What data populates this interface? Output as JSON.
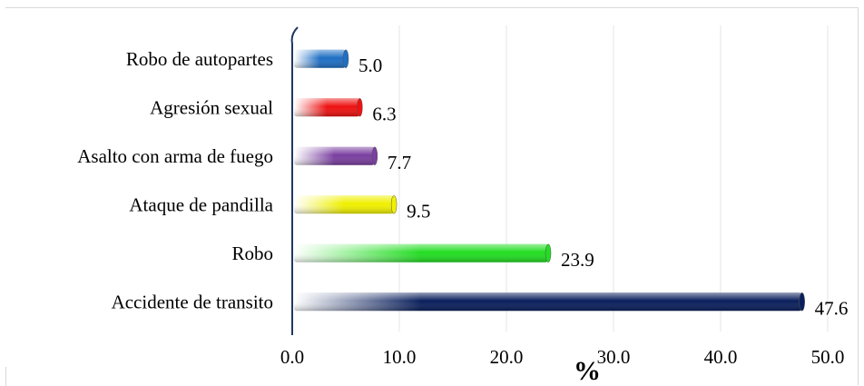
{
  "chart_data": {
    "type": "bar",
    "orientation": "horizontal",
    "categories": [
      "Robo de autopartes",
      "Agresión sexual",
      "Asalto con arma de fuego",
      "Ataque de pandilla",
      "Robo",
      "Accidente de transito"
    ],
    "values": [
      5.0,
      6.3,
      7.7,
      9.5,
      23.9,
      47.6
    ],
    "value_labels": [
      "5.0",
      "6.3",
      "7.7",
      "9.5",
      "23.9",
      "47.6"
    ],
    "colors": [
      "#1f6fc4",
      "#ee1111",
      "#7a3fa0",
      "#f0f000",
      "#22dd22",
      "#0a1f5c"
    ],
    "xlabel": "%",
    "xlim": [
      0,
      50
    ],
    "xticks": [
      "0.0",
      "10.0",
      "20.0",
      "30.0",
      "40.0",
      "50.0"
    ],
    "grid": true,
    "legend": "none"
  }
}
